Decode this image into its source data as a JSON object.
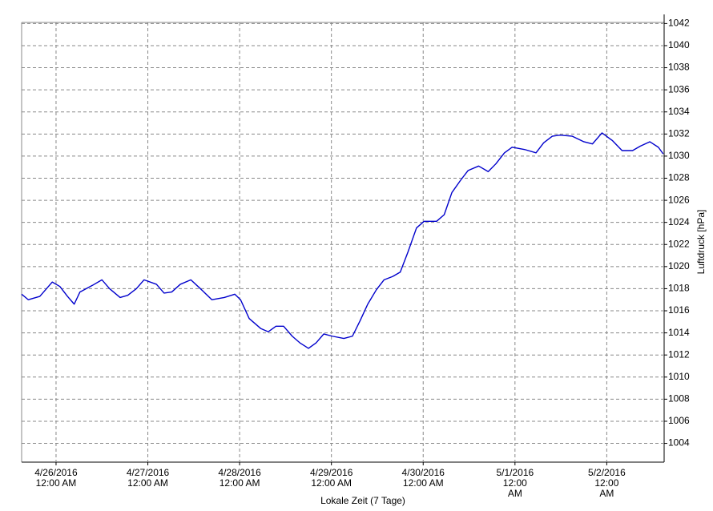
{
  "chart_data": {
    "type": "line",
    "x_label": "Lokale Zeit (7 Tage)",
    "y_label": "Luftdruck [hPa]",
    "x": [
      "2016-04-25T15:00",
      "2016-04-25T16:45",
      "2016-04-25T19:45",
      "2016-04-25T23:00",
      "2016-04-26T01:00",
      "2016-04-26T03:00",
      "2016-04-26T04:45",
      "2016-04-26T06:15",
      "2016-04-26T09:30",
      "2016-04-26T12:00",
      "2016-04-26T14:00",
      "2016-04-26T16:45",
      "2016-04-26T18:45",
      "2016-04-26T21:00",
      "2016-04-26T23:00",
      "2016-04-27T02:15",
      "2016-04-27T04:15",
      "2016-04-27T06:15",
      "2016-04-27T08:30",
      "2016-04-27T11:15",
      "2016-04-27T13:45",
      "2016-04-27T16:45",
      "2016-04-27T20:00",
      "2016-04-27T22:45",
      "2016-04-28T00:15",
      "2016-04-28T02:30",
      "2016-04-28T05:30",
      "2016-04-28T07:30",
      "2016-04-28T09:30",
      "2016-04-28T11:30",
      "2016-04-28T13:45",
      "2016-04-28T15:45",
      "2016-04-28T18:00",
      "2016-04-28T20:00",
      "2016-04-28T22:00",
      "2016-04-29T00:15",
      "2016-04-29T03:15",
      "2016-04-29T05:30",
      "2016-04-29T07:30",
      "2016-04-29T09:30",
      "2016-04-29T11:45",
      "2016-04-29T13:45",
      "2016-04-29T16:00",
      "2016-04-29T18:00",
      "2016-04-29T20:00",
      "2016-04-29T22:15",
      "2016-04-30T00:15",
      "2016-04-30T03:30",
      "2016-04-30T05:30",
      "2016-04-30T07:30",
      "2016-04-30T09:45",
      "2016-04-30T11:45",
      "2016-04-30T14:30",
      "2016-04-30T17:00",
      "2016-04-30T19:00",
      "2016-04-30T21:15",
      "2016-04-30T23:15",
      "2016-05-01T02:30",
      "2016-05-01T05:30",
      "2016-05-01T07:30",
      "2016-05-01T09:45",
      "2016-05-01T11:45",
      "2016-05-01T15:00",
      "2016-05-01T18:00",
      "2016-05-01T20:15",
      "2016-05-01T22:45",
      "2016-05-02T01:30",
      "2016-05-02T04:00",
      "2016-05-02T06:45",
      "2016-05-02T08:45",
      "2016-05-02T11:15",
      "2016-05-02T13:30",
      "2016-05-02T14:45"
    ],
    "values": [
      1017.5,
      1017.0,
      1017.3,
      1018.6,
      1018.2,
      1017.3,
      1016.6,
      1017.7,
      1018.3,
      1018.8,
      1018.0,
      1017.2,
      1017.4,
      1018.0,
      1018.8,
      1018.4,
      1017.6,
      1017.7,
      1018.4,
      1018.8,
      1018.0,
      1017.0,
      1017.2,
      1017.5,
      1017.0,
      1015.3,
      1014.4,
      1014.1,
      1014.6,
      1014.6,
      1013.7,
      1013.1,
      1012.6,
      1013.1,
      1013.9,
      1013.7,
      1013.5,
      1013.7,
      1015.1,
      1016.6,
      1017.9,
      1018.8,
      1019.1,
      1019.5,
      1021.3,
      1023.5,
      1024.1,
      1024.1,
      1024.7,
      1026.7,
      1027.8,
      1028.7,
      1029.1,
      1028.6,
      1029.3,
      1030.3,
      1030.8,
      1030.6,
      1030.3,
      1031.2,
      1031.8,
      1031.9,
      1031.8,
      1031.3,
      1031.1,
      1032.1,
      1031.4,
      1030.5,
      1030.5,
      1030.9,
      1031.3,
      1030.8,
      1030.2
    ],
    "color": "#0000cc",
    "xlim": [
      "2016-04-25T15:00",
      "2016-05-02T15:00"
    ],
    "xticks": [
      {
        "value": "2016-04-26T00:00",
        "label": "4/26/2016 12:00 AM"
      },
      {
        "value": "2016-04-27T00:00",
        "label": "4/27/2016 12:00 AM"
      },
      {
        "value": "2016-04-28T00:00",
        "label": "4/28/2016 12:00 AM"
      },
      {
        "value": "2016-04-29T00:00",
        "label": "4/29/2016 12:00 AM"
      },
      {
        "value": "2016-04-30T00:00",
        "label": "4/30/2016 12:00 AM"
      },
      {
        "value": "2016-05-01T00:00",
        "label": "5/1/2016 12:00 AM"
      },
      {
        "value": "2016-05-02T00:00",
        "label": "5/2/2016 12:00 AM"
      }
    ],
    "ylim": [
      1002.3,
      1042.1
    ],
    "yticks": [
      1004,
      1006,
      1008,
      1010,
      1012,
      1014,
      1016,
      1018,
      1020,
      1022,
      1024,
      1026,
      1028,
      1030,
      1032,
      1034,
      1036,
      1038,
      1040,
      1042
    ],
    "grid": true
  }
}
